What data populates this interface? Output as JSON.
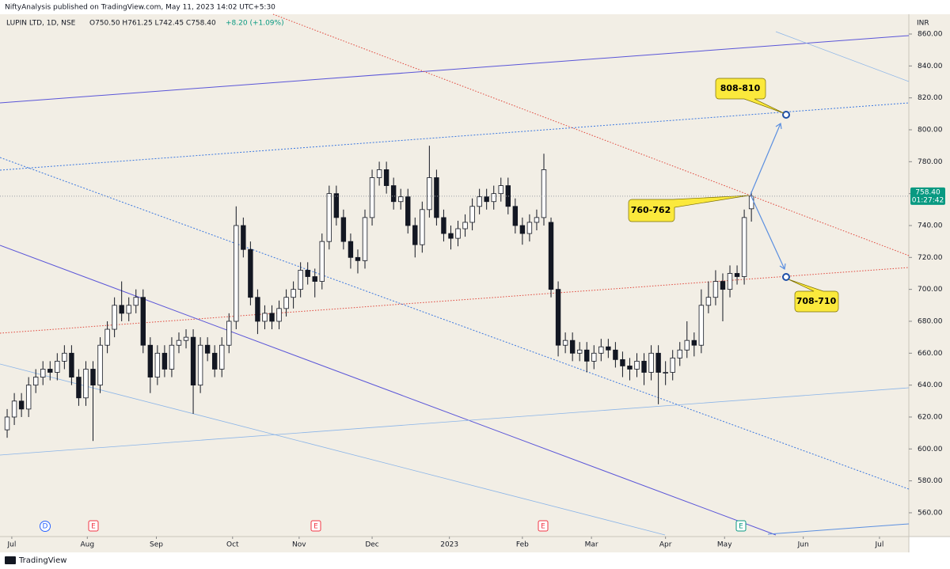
{
  "header": {
    "publisher": "NiftyAnalysis published on TradingView.com, May 11, 2023 14:02 UTC+5:30",
    "symbol": "LUPIN LTD, 1D, NSE",
    "ohlc_text": "O750.50 H761.25 L742.45 C758.40",
    "change_text": "+8.20 (+1.09%)"
  },
  "footer": {
    "brand": "TradingView"
  },
  "chart_data": {
    "type": "candlestick",
    "currency": "INR",
    "x": [
      0,
      2,
      4,
      6,
      8,
      10,
      12,
      14,
      16,
      18,
      20,
      22,
      24,
      26,
      28,
      30,
      32,
      34,
      36,
      38,
      40,
      42,
      44,
      46,
      48,
      50,
      52,
      54,
      56,
      58,
      60,
      62,
      64,
      66,
      68,
      70,
      72,
      74,
      76,
      78,
      80,
      82,
      84,
      86,
      88,
      90,
      92,
      94,
      96,
      98,
      100,
      102,
      104,
      106,
      108,
      110,
      112,
      114,
      116,
      118,
      120,
      122,
      124,
      126,
      128,
      130,
      132,
      134,
      136,
      138,
      140,
      142,
      144,
      146,
      148,
      150,
      152,
      154,
      156,
      158,
      160,
      162,
      164,
      166,
      168,
      170,
      172,
      174,
      176,
      178,
      180,
      182,
      184,
      186,
      188,
      190,
      192,
      194,
      196,
      198,
      200,
      202,
      204,
      206,
      208
    ],
    "open": [
      612,
      620,
      630,
      625,
      640,
      645,
      650,
      648,
      655,
      660,
      645,
      632,
      650,
      640,
      665,
      675,
      690,
      685,
      690,
      695,
      665,
      645,
      660,
      650,
      665,
      668,
      670,
      640,
      665,
      660,
      650,
      665,
      680,
      740,
      725,
      695,
      680,
      685,
      680,
      688,
      695,
      700,
      712,
      708,
      705,
      730,
      760,
      745,
      730,
      720,
      718,
      745,
      770,
      775,
      765,
      755,
      758,
      740,
      728,
      750,
      770,
      745,
      735,
      732,
      738,
      742,
      752,
      758,
      755,
      760,
      765,
      752,
      740,
      735,
      742,
      745,
      742,
      700,
      665,
      668,
      660,
      662,
      655,
      660,
      664,
      662,
      656,
      652,
      650,
      655,
      648,
      660,
      648,
      648,
      657,
      662,
      668,
      665,
      690,
      695,
      705,
      700,
      710,
      708,
      750.5
    ],
    "high": [
      625,
      635,
      635,
      645,
      650,
      655,
      655,
      660,
      665,
      665,
      650,
      655,
      655,
      670,
      680,
      695,
      705,
      695,
      700,
      700,
      670,
      665,
      665,
      670,
      673,
      675,
      675,
      670,
      670,
      665,
      670,
      685,
      752,
      745,
      730,
      700,
      690,
      690,
      693,
      700,
      705,
      717,
      717,
      713,
      735,
      765,
      765,
      750,
      735,
      725,
      750,
      775,
      780,
      780,
      770,
      763,
      763,
      745,
      755,
      790,
      775,
      750,
      740,
      743,
      747,
      757,
      763,
      763,
      765,
      770,
      770,
      757,
      745,
      747,
      750,
      785,
      745,
      705,
      673,
      673,
      667,
      667,
      665,
      669,
      669,
      667,
      661,
      657,
      660,
      660,
      665,
      665,
      655,
      662,
      667,
      680,
      673,
      700,
      705,
      712,
      710,
      715,
      715,
      750,
      761.25
    ],
    "low": [
      607,
      615,
      620,
      620,
      635,
      640,
      643,
      643,
      650,
      640,
      627,
      627,
      605,
      635,
      660,
      670,
      680,
      680,
      685,
      660,
      635,
      640,
      645,
      645,
      660,
      663,
      622,
      635,
      655,
      645,
      645,
      660,
      675,
      720,
      690,
      672,
      675,
      675,
      675,
      683,
      688,
      695,
      703,
      695,
      700,
      725,
      740,
      725,
      713,
      710,
      713,
      740,
      765,
      760,
      750,
      750,
      735,
      720,
      723,
      745,
      740,
      730,
      725,
      727,
      733,
      737,
      747,
      750,
      750,
      755,
      747,
      735,
      728,
      730,
      737,
      740,
      695,
      658,
      660,
      655,
      655,
      648,
      650,
      655,
      657,
      651,
      645,
      643,
      645,
      640,
      643,
      628,
      640,
      643,
      652,
      657,
      658,
      660,
      685,
      690,
      680,
      695,
      703,
      703,
      742.45
    ],
    "close": [
      620,
      630,
      625,
      640,
      645,
      650,
      648,
      655,
      660,
      645,
      632,
      650,
      640,
      665,
      675,
      690,
      685,
      690,
      695,
      665,
      645,
      660,
      650,
      665,
      668,
      670,
      640,
      665,
      660,
      650,
      665,
      680,
      740,
      725,
      695,
      680,
      685,
      680,
      688,
      695,
      700,
      712,
      708,
      705,
      730,
      760,
      745,
      730,
      720,
      718,
      745,
      770,
      775,
      765,
      755,
      758,
      740,
      728,
      750,
      770,
      745,
      735,
      732,
      738,
      742,
      752,
      758,
      755,
      760,
      765,
      752,
      740,
      735,
      742,
      745,
      775,
      700,
      665,
      668,
      660,
      662,
      655,
      660,
      664,
      662,
      656,
      652,
      650,
      655,
      648,
      660,
      648,
      648,
      657,
      662,
      668,
      665,
      690,
      695,
      705,
      700,
      710,
      708,
      745,
      758.4
    ],
    "up_color": "#ffffff",
    "down_color": "#131722",
    "outline_color": "#131722",
    "xlim": [
      -2,
      252
    ],
    "xticks": [
      {
        "value": 1.3,
        "label": "Jul"
      },
      {
        "value": 22.4,
        "label": "Aug"
      },
      {
        "value": 41.7,
        "label": "Sep"
      },
      {
        "value": 63,
        "label": "Oct"
      },
      {
        "value": 81.6,
        "label": "Nov"
      },
      {
        "value": 102,
        "label": "Dec"
      },
      {
        "value": 123.6,
        "label": "2023"
      },
      {
        "value": 144,
        "label": "Feb"
      },
      {
        "value": 163.3,
        "label": "Mar"
      },
      {
        "value": 184,
        "label": "Apr"
      },
      {
        "value": 200.5,
        "label": "May"
      },
      {
        "value": 222.5,
        "label": "Jun"
      },
      {
        "value": 243.8,
        "label": "Jul"
      }
    ],
    "ylim": [
      545.1,
      872.4
    ],
    "yticks": [
      {
        "value": 560,
        "label": "560.00"
      },
      {
        "value": 580,
        "label": "580.00"
      },
      {
        "value": 600,
        "label": "600.00"
      },
      {
        "value": 620,
        "label": "620.00"
      },
      {
        "value": 640,
        "label": "640.00"
      },
      {
        "value": 660,
        "label": "660.00"
      },
      {
        "value": 680,
        "label": "680.00"
      },
      {
        "value": 700,
        "label": "700.00"
      },
      {
        "value": 720,
        "label": "720.00"
      },
      {
        "value": 740,
        "label": "740.00"
      },
      {
        "value": 760,
        "label": "760.00"
      },
      {
        "value": 780,
        "label": "780.00"
      },
      {
        "value": 800,
        "label": "800.00"
      },
      {
        "value": 820,
        "label": "820.00"
      },
      {
        "value": 840,
        "label": "840.00"
      },
      {
        "value": 860,
        "label": "860.00"
      }
    ],
    "last_price": {
      "value": 758.4,
      "label": "758.40"
    },
    "countdown": "01:27:42",
    "annotations": [
      "808-810",
      "760-762",
      "708-710"
    ],
    "events": [
      "D",
      "E",
      "E",
      "E",
      "E"
    ]
  }
}
